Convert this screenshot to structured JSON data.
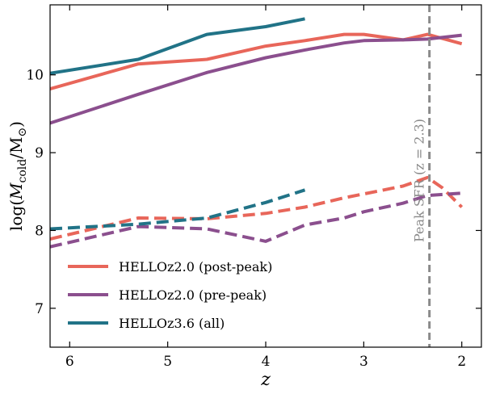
{
  "chart_data": {
    "type": "line",
    "xlabel": "z",
    "ylabel": "log(M_cold/M_⊙)",
    "ylabel_parts": {
      "prefix": "log(",
      "m": "M",
      "sub": "cold",
      "slash": "/M",
      "sun": "⊙",
      "suffix": ")"
    },
    "xlim": [
      6.2,
      1.8
    ],
    "ylim": [
      6.5,
      10.9
    ],
    "x_ticks": [
      6,
      5,
      4,
      3,
      2
    ],
    "y_ticks": [
      7,
      8,
      9,
      10
    ],
    "x_tick_labels": [
      "6",
      "5",
      "4",
      "3",
      "2"
    ],
    "y_tick_labels": [
      "7",
      "8",
      "9",
      "10"
    ],
    "grid": false,
    "legend_position": "lower-left",
    "colors": {
      "post_peak": "#e8665a",
      "pre_peak": "#8b4f8e",
      "z36": "#217387",
      "annotation": "#8a8a8a"
    },
    "series": [
      {
        "name": "HELLOz2.0 (post-peak)",
        "color_key": "post_peak",
        "style": "solid",
        "x": [
          6.2,
          5.3,
          4.6,
          4.0,
          3.6,
          3.2,
          3.0,
          2.6,
          2.35,
          2.0
        ],
        "y": [
          9.82,
          10.14,
          10.2,
          10.37,
          10.44,
          10.52,
          10.52,
          10.45,
          10.52,
          10.4
        ]
      },
      {
        "name": "HELLOz2.0 (pre-peak)",
        "color_key": "pre_peak",
        "style": "solid",
        "x": [
          6.2,
          5.3,
          4.6,
          4.0,
          3.6,
          3.2,
          3.0,
          2.6,
          2.35,
          2.0
        ],
        "y": [
          9.38,
          9.75,
          10.03,
          10.22,
          10.32,
          10.41,
          10.44,
          10.45,
          10.46,
          10.51
        ]
      },
      {
        "name": "HELLOz3.6 (all)",
        "color_key": "z36",
        "style": "solid",
        "x": [
          6.2,
          5.3,
          4.6,
          4.0,
          3.6
        ],
        "y": [
          10.02,
          10.2,
          10.52,
          10.62,
          10.72
        ]
      },
      {
        "name": "",
        "color_key": "post_peak",
        "style": "dashed",
        "x": [
          6.2,
          5.3,
          4.6,
          4.0,
          3.6,
          3.2,
          3.0,
          2.6,
          2.35,
          2.2,
          2.0
        ],
        "y": [
          7.89,
          8.16,
          8.15,
          8.22,
          8.3,
          8.42,
          8.47,
          8.57,
          8.68,
          8.55,
          8.3
        ]
      },
      {
        "name": "",
        "color_key": "pre_peak",
        "style": "dashed",
        "x": [
          6.2,
          5.3,
          4.6,
          4.0,
          3.6,
          3.2,
          3.0,
          2.6,
          2.35,
          2.0
        ],
        "y": [
          7.79,
          8.05,
          8.02,
          7.86,
          8.07,
          8.16,
          8.24,
          8.35,
          8.45,
          8.48
        ]
      },
      {
        "name": "",
        "color_key": "z36",
        "style": "dashed",
        "x": [
          6.2,
          5.3,
          4.6,
          4.0,
          3.6
        ],
        "y": [
          8.02,
          8.08,
          8.16,
          8.36,
          8.52
        ]
      }
    ],
    "vline": {
      "x": 2.33,
      "style": "dashed",
      "color_key": "annotation"
    },
    "annotation": "Peak SFR (z = 2.3)"
  }
}
